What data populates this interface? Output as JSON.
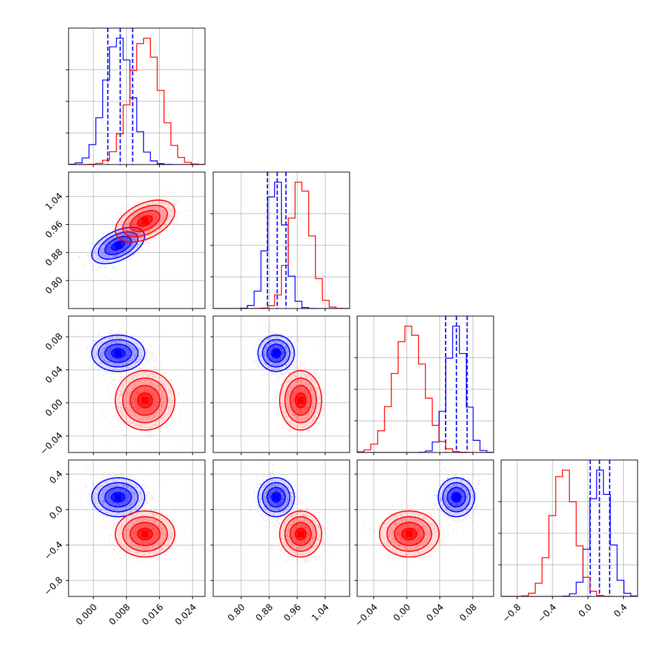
{
  "chart_data": {
    "type": "corner",
    "title": "",
    "parameters": [
      {
        "label": "",
        "range": [
          -0.006,
          0.027
        ],
        "ticks": [
          0.0,
          0.008,
          0.016,
          0.024
        ],
        "tick_labels": [
          "0.000",
          "0.008",
          "0.016",
          "0.024"
        ]
      },
      {
        "label": "",
        "range": [
          0.72,
          1.11
        ],
        "ticks": [
          0.8,
          0.88,
          0.96,
          1.04
        ],
        "tick_labels": [
          "0.80",
          "0.88",
          "0.96",
          "1.04"
        ]
      },
      {
        "label": "",
        "range": [
          -0.06,
          0.105
        ],
        "ticks": [
          -0.04,
          0.0,
          0.04,
          0.08
        ],
        "tick_labels": [
          "−0.04",
          "0.00",
          "0.04",
          "0.08"
        ]
      },
      {
        "label": "",
        "range": [
          -0.98,
          0.56
        ],
        "ticks": [
          -0.8,
          -0.4,
          0.0,
          0.4
        ],
        "tick_labels": [
          "−0.8",
          "−0.4",
          "0.0",
          "0.4"
        ]
      }
    ],
    "series": [
      {
        "color": "#0000ff",
        "mean": [
          0.006,
          0.9,
          0.06,
          0.14
        ],
        "sd": [
          0.0032,
          0.026,
          0.011,
          0.11
        ],
        "corr": [
          [
            1,
            0.5,
            0,
            0
          ],
          [
            0.5,
            1,
            0,
            0
          ],
          [
            0,
            0,
            1,
            0
          ],
          [
            0,
            0,
            0,
            1
          ]
        ],
        "quantiles": [
          [
            0.0035,
            0.0065,
            0.0095
          ],
          [
            0.875,
            0.903,
            0.928
          ],
          [
            0.047,
            0.06,
            0.073
          ],
          [
            0.025,
            0.13,
            0.245
          ]
        ]
      },
      {
        "color": "#ff0000",
        "mean": [
          0.0125,
          0.97,
          0.003,
          -0.275
        ],
        "sd": [
          0.0036,
          0.03,
          0.018,
          0.13
        ],
        "corr": [
          [
            1,
            0.45,
            0,
            0
          ],
          [
            0.45,
            1,
            0,
            0
          ],
          [
            0,
            0,
            1,
            0
          ],
          [
            0,
            0,
            0,
            1
          ]
        ],
        "quantiles": null
      }
    ],
    "grid": true,
    "legend": "none"
  }
}
